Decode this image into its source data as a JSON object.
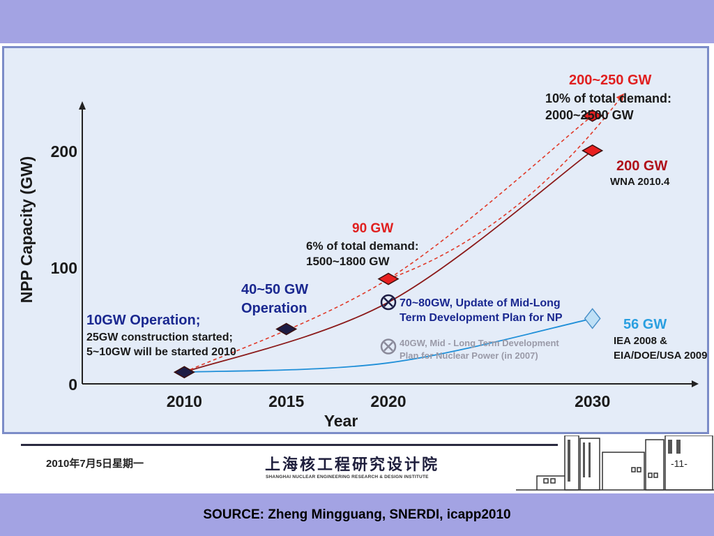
{
  "chart_data": {
    "type": "line",
    "title": "",
    "xlabel": "Year",
    "ylabel": "NPP Capacity (GW)",
    "x_ticks": [
      "2010",
      "2015",
      "2020",
      "2030"
    ],
    "y_ticks": [
      "0",
      "100",
      "200"
    ],
    "xlim": [
      2005,
      2035
    ],
    "ylim": [
      0,
      240
    ],
    "grid": false,
    "series": [
      {
        "name": "",
        "color": "#8b1a1a",
        "style": "solid",
        "x": [
          2010,
          2020,
          2030
        ],
        "y": [
          10,
          70,
          200
        ]
      },
      {
        "name": "",
        "color": "#e03a2a",
        "style": "dashed",
        "x": [
          2010,
          2020,
          2030
        ],
        "y": [
          10,
          90,
          230
        ]
      },
      {
        "name": "",
        "color": "#e03a2a",
        "style": "dashed",
        "x": [
          2020,
          2031.5
        ],
        "y": [
          90,
          248
        ]
      },
      {
        "name": "",
        "color": "#1f8fd8",
        "style": "solid",
        "x": [
          2010,
          2020,
          2030
        ],
        "y": [
          10,
          18,
          56
        ]
      }
    ],
    "points": [
      {
        "x": 2010,
        "y": 10,
        "marker": "diamond",
        "color": "#1c1c44"
      },
      {
        "x": 2015,
        "y": 47,
        "marker": "diamond",
        "color": "#1c1c44"
      },
      {
        "x": 2020,
        "y": 90,
        "marker": "diamond",
        "color": "#e82020"
      },
      {
        "x": 2020,
        "y": 70,
        "marker": "circle-x",
        "color": "#1c1c44"
      },
      {
        "x": 2020,
        "y": 32,
        "marker": "circle-x",
        "color": "#8a8a9a"
      },
      {
        "x": 2030,
        "y": 230,
        "marker": "diamond",
        "color": "#e82020"
      },
      {
        "x": 2030,
        "y": 200,
        "marker": "diamond",
        "color": "#e82020"
      },
      {
        "x": 2030,
        "y": 56,
        "marker": "diamond-light",
        "color": "#bfe0f6"
      }
    ],
    "annotations": [
      {
        "lines": [
          "10GW Operation;"
        ],
        "color": "#1a2890"
      },
      {
        "lines": [
          "25GW construction started;",
          "5~10GW will be started 2010"
        ],
        "color": "#1a1a1a"
      },
      {
        "lines": [
          "40~50 GW",
          "Operation"
        ],
        "color": "#1a2890"
      },
      {
        "lines": [
          "90 GW"
        ],
        "color": "#e02020"
      },
      {
        "lines": [
          "6% of total demand:",
          "1500~1800 GW"
        ],
        "color": "#1a1a1a"
      },
      {
        "lines": [
          "70~80GW, Update of Mid-Long",
          "Term Development Plan for NP"
        ],
        "color": "#1a2890"
      },
      {
        "lines": [
          "40GW, Mid - Long Term Development",
          "Plan for Nuclear Power (in 2007)"
        ],
        "color": "#9a9aa8"
      },
      {
        "lines": [
          "200~250 GW"
        ],
        "color": "#e02020"
      },
      {
        "lines": [
          "10% of total demand:",
          "2000~2500 GW"
        ],
        "color": "#1a1a1a"
      },
      {
        "lines": [
          "200 GW"
        ],
        "color": "#b0101a"
      },
      {
        "lines": [
          "WNA 2010.4"
        ],
        "color": "#1a1a1a"
      },
      {
        "lines": [
          "56 GW"
        ],
        "color": "#2a9fe0"
      },
      {
        "lines": [
          "IEA 2008 &",
          "EIA/DOE/USA 2009"
        ],
        "color": "#1a1a1a"
      }
    ]
  },
  "footer": {
    "date": "2010年7月5日星期一",
    "org_cn": "上海核工程研究设计院",
    "org_en": "SHANGHAI NUCLEAR ENGINEERING RESEARCH & DESIGN INSTITUTE",
    "page": "-11-"
  },
  "source": "SOURCE: Zheng Mingguang, SNERDI, icapp2010"
}
